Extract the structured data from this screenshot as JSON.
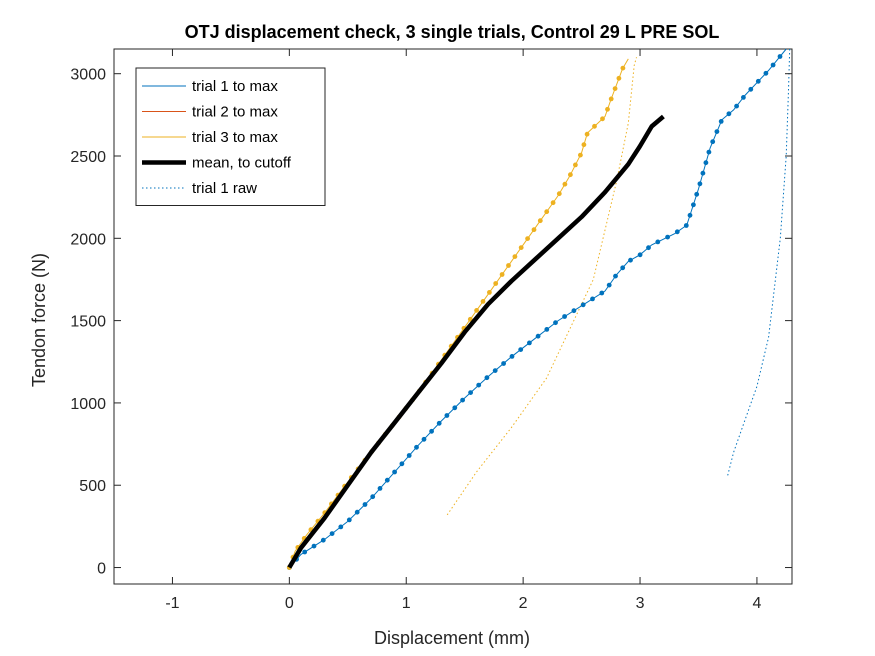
{
  "chart_data": {
    "type": "line",
    "title": "OTJ displacement check, 3 single trials, Control 29 L PRE SOL",
    "xlabel": "Displacement (mm)",
    "ylabel": "Tendon force (N)",
    "xlim": [
      -1.5,
      4.3
    ],
    "ylim": [
      -100,
      3150
    ],
    "xticks": [
      -1,
      0,
      1,
      2,
      3,
      4
    ],
    "yticks": [
      0,
      500,
      1000,
      1500,
      2000,
      2500,
      3000
    ],
    "grid": false,
    "legend_position": "top-left",
    "colors": {
      "trial1": "#0072BD",
      "trial2": "#D95319",
      "trial3": "#EDB120",
      "mean": "#000000"
    },
    "series": [
      {
        "name": "trial 1 to max",
        "key": "trial1",
        "style": "solid-markers",
        "points": [
          [
            0,
            0
          ],
          [
            0.1,
            80
          ],
          [
            0.3,
            170
          ],
          [
            0.5,
            280
          ],
          [
            0.7,
            420
          ],
          [
            0.9,
            580
          ],
          [
            1.1,
            740
          ],
          [
            1.3,
            890
          ],
          [
            1.5,
            1030
          ],
          [
            1.7,
            1160
          ],
          [
            1.9,
            1280
          ],
          [
            2.1,
            1390
          ],
          [
            2.3,
            1500
          ],
          [
            2.5,
            1590
          ],
          [
            2.7,
            1680
          ],
          [
            2.8,
            1780
          ],
          [
            2.9,
            1860
          ],
          [
            3.0,
            1900
          ],
          [
            3.1,
            1960
          ],
          [
            3.3,
            2030
          ],
          [
            3.4,
            2080
          ],
          [
            3.5,
            2300
          ],
          [
            3.6,
            2550
          ],
          [
            3.7,
            2720
          ],
          [
            3.8,
            2780
          ],
          [
            3.9,
            2870
          ],
          [
            4.1,
            3020
          ],
          [
            4.25,
            3150
          ]
        ]
      },
      {
        "name": "trial 2 to max",
        "key": "trial2",
        "style": "solid",
        "points": []
      },
      {
        "name": "trial 3 to max",
        "key": "trial3",
        "style": "solid-markers",
        "points": [
          [
            0,
            0
          ],
          [
            0.05,
            100
          ],
          [
            0.15,
            200
          ],
          [
            0.3,
            330
          ],
          [
            0.5,
            520
          ],
          [
            0.7,
            700
          ],
          [
            0.9,
            880
          ],
          [
            1.1,
            1060
          ],
          [
            1.3,
            1260
          ],
          [
            1.5,
            1460
          ],
          [
            1.7,
            1660
          ],
          [
            1.9,
            1860
          ],
          [
            2.1,
            2060
          ],
          [
            2.3,
            2260
          ],
          [
            2.4,
            2380
          ],
          [
            2.5,
            2520
          ],
          [
            2.55,
            2640
          ],
          [
            2.7,
            2740
          ],
          [
            2.75,
            2840
          ],
          [
            2.85,
            3030
          ],
          [
            2.9,
            3090
          ]
        ]
      },
      {
        "name": "mean, to cutoff",
        "key": "mean",
        "style": "thick",
        "points": [
          [
            0,
            0
          ],
          [
            0.1,
            120
          ],
          [
            0.3,
            300
          ],
          [
            0.5,
            500
          ],
          [
            0.7,
            700
          ],
          [
            0.9,
            880
          ],
          [
            1.1,
            1060
          ],
          [
            1.3,
            1240
          ],
          [
            1.5,
            1430
          ],
          [
            1.7,
            1600
          ],
          [
            1.9,
            1740
          ],
          [
            2.1,
            1870
          ],
          [
            2.3,
            2000
          ],
          [
            2.5,
            2130
          ],
          [
            2.7,
            2280
          ],
          [
            2.9,
            2450
          ],
          [
            3.0,
            2560
          ],
          [
            3.1,
            2680
          ],
          [
            3.2,
            2740
          ]
        ]
      },
      {
        "name": "trial 1 raw",
        "key": "trial1",
        "style": "dotted",
        "points": [
          [
            3.75,
            560
          ],
          [
            3.8,
            700
          ],
          [
            3.9,
            900
          ],
          [
            4.0,
            1100
          ],
          [
            4.1,
            1400
          ],
          [
            4.2,
            2000
          ],
          [
            4.25,
            2500
          ],
          [
            4.27,
            2900
          ],
          [
            4.28,
            3150
          ]
        ]
      }
    ],
    "extra_lines": [
      {
        "key": "trial3",
        "style": "dotted",
        "points": [
          [
            1.35,
            320
          ],
          [
            1.6,
            580
          ],
          [
            1.9,
            850
          ],
          [
            2.2,
            1150
          ],
          [
            2.4,
            1450
          ],
          [
            2.6,
            1750
          ],
          [
            2.7,
            2050
          ],
          [
            2.8,
            2350
          ],
          [
            2.9,
            2700
          ],
          [
            2.95,
            3050
          ],
          [
            2.97,
            3100
          ]
        ]
      }
    ]
  }
}
